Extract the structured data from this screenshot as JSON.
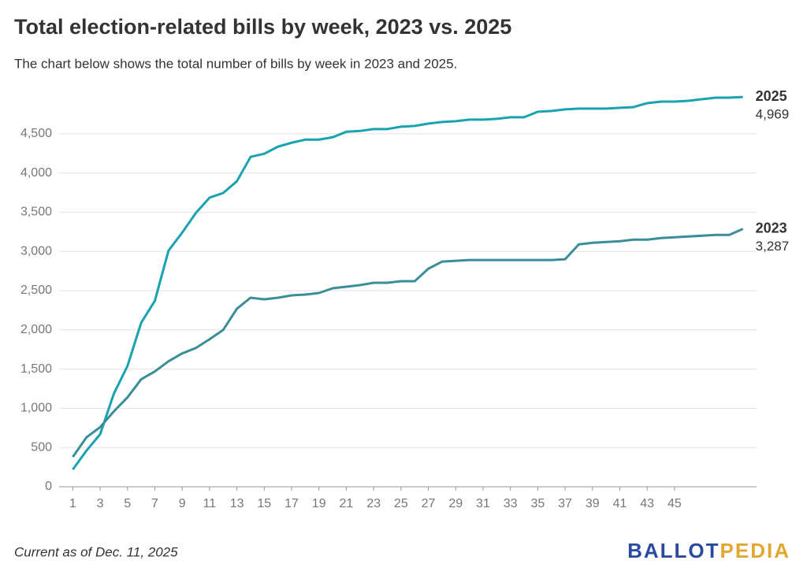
{
  "chart_data": {
    "type": "line",
    "title": "Total election-related bills by week, 2023 vs. 2025",
    "subtitle": "The chart below shows the total number of bills by week in 2023 and 2025.",
    "x": [
      1,
      2,
      3,
      4,
      5,
      6,
      7,
      8,
      9,
      10,
      11,
      12,
      13,
      14,
      15,
      16,
      17,
      18,
      19,
      20,
      21,
      22,
      23,
      24,
      25,
      26,
      27,
      28,
      29,
      30,
      31,
      32,
      33,
      34,
      35,
      36,
      37,
      38,
      39,
      40,
      41,
      42,
      43,
      44,
      45,
      46,
      47,
      48,
      49,
      50
    ],
    "xlim": [
      0,
      51
    ],
    "xticks": [
      1,
      3,
      5,
      7,
      9,
      11,
      13,
      15,
      17,
      19,
      21,
      23,
      25,
      27,
      29,
      31,
      33,
      35,
      37,
      39,
      41,
      43,
      45
    ],
    "ylim": [
      0,
      5000
    ],
    "yticks": [
      0,
      500,
      {
        "value": 1000,
        "label": "1,000"
      },
      {
        "value": 1500,
        "label": "1,500"
      },
      {
        "value": 2000,
        "label": "2,000"
      },
      {
        "value": 2500,
        "label": "2,500"
      },
      {
        "value": 3000,
        "label": "3,000"
      },
      {
        "value": 3500,
        "label": "3,500"
      },
      {
        "value": 4000,
        "label": "4,000"
      },
      {
        "value": 4500,
        "label": "4,500"
      }
    ],
    "grid": true,
    "series": [
      {
        "name": "2025",
        "color": "#19a2b0",
        "values": [
          220,
          460,
          670,
          1185,
          1540,
          2090,
          2370,
          3010,
          3240,
          3490,
          3685,
          3745,
          3895,
          4205,
          4245,
          4335,
          4385,
          4425,
          4425,
          4455,
          4525,
          4535,
          4560,
          4560,
          4590,
          4600,
          4630,
          4650,
          4660,
          4680,
          4680,
          4690,
          4710,
          4710,
          4780,
          4790,
          4810,
          4820,
          4820,
          4820,
          4830,
          4840,
          4890,
          4910,
          4910,
          4920,
          4940,
          4960,
          4960,
          4969
        ],
        "value_labels": [
          null,
          null,
          null,
          null,
          null,
          null,
          null,
          null,
          null,
          null,
          null,
          null,
          null,
          null,
          null,
          null,
          null,
          null,
          null,
          null,
          null,
          null,
          null,
          null,
          null,
          null,
          null,
          null,
          null,
          null,
          null,
          null,
          null,
          null,
          null,
          null,
          null,
          null,
          null,
          null,
          null,
          null,
          null,
          null,
          null,
          null,
          null,
          null,
          null,
          "4,969"
        ]
      },
      {
        "name": "2023",
        "color": "#3a8e98",
        "values": [
          380,
          630,
          760,
          960,
          1140,
          1370,
          1470,
          1600,
          1700,
          1770,
          1880,
          2000,
          2270,
          2410,
          2390,
          2410,
          2440,
          2450,
          2470,
          2530,
          2550,
          2570,
          2600,
          2600,
          2620,
          2620,
          2780,
          2870,
          2880,
          2890,
          2890,
          2890,
          2890,
          2890,
          2890,
          2890,
          2900,
          3090,
          3110,
          3120,
          3130,
          3150,
          3150,
          3170,
          3180,
          3190,
          3200,
          3210,
          3210,
          3287
        ],
        "value_labels": [
          null,
          null,
          null,
          null,
          null,
          null,
          null,
          null,
          null,
          null,
          null,
          null,
          null,
          null,
          null,
          null,
          null,
          null,
          null,
          null,
          null,
          null,
          null,
          null,
          null,
          null,
          null,
          null,
          null,
          null,
          null,
          null,
          null,
          null,
          null,
          null,
          null,
          null,
          null,
          null,
          null,
          null,
          null,
          null,
          null,
          null,
          null,
          null,
          null,
          "3,287"
        ]
      }
    ],
    "note": "Current as of Dec. 11, 2025",
    "logo": {
      "first": "BALLOT",
      "second": "PEDIA"
    }
  }
}
